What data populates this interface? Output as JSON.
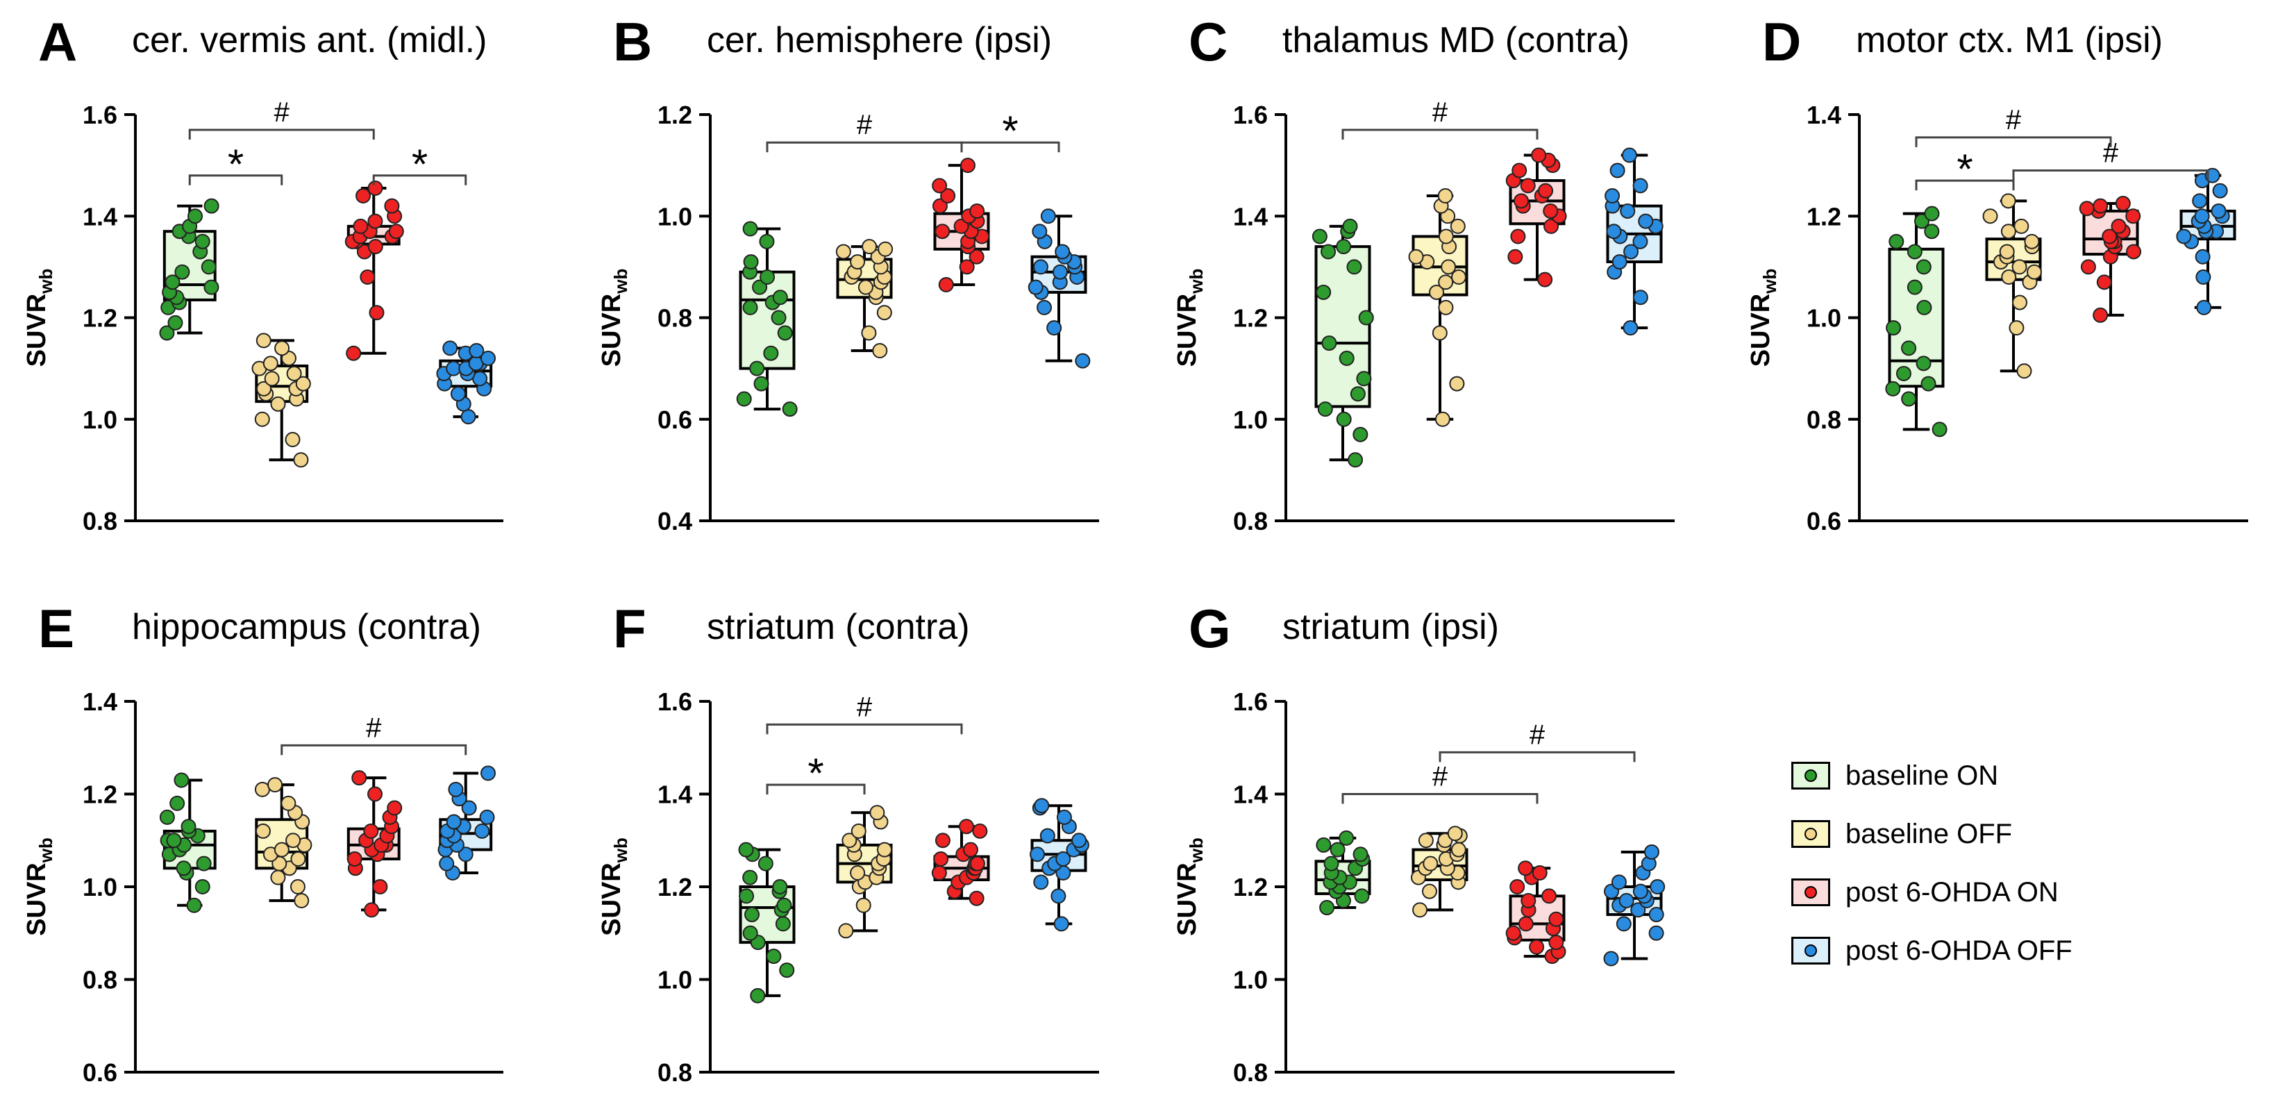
{
  "chart_data": [
    {
      "type": "box",
      "panel_letter": "A",
      "title": "cer. vermis ant. (midl.)",
      "ylabel": "SUVR",
      "ylabel_sub": "wb",
      "ylim": [
        0.8,
        1.6
      ],
      "yticks": [
        "0.8",
        "1.0",
        "1.2",
        "1.4",
        "1.6"
      ],
      "groups": [
        {
          "name": "baseline ON",
          "min": 1.17,
          "q1": 1.235,
          "median": 1.265,
          "q3": 1.37,
          "max": 1.42,
          "points": [
            1.17,
            1.19,
            1.22,
            1.23,
            1.24,
            1.25,
            1.26,
            1.27,
            1.29,
            1.3,
            1.33,
            1.35,
            1.36,
            1.37,
            1.38,
            1.4,
            1.42
          ]
        },
        {
          "name": "baseline OFF",
          "min": 0.92,
          "q1": 1.035,
          "median": 1.065,
          "q3": 1.105,
          "max": 1.155,
          "points": [
            0.92,
            0.96,
            1.0,
            1.03,
            1.04,
            1.05,
            1.06,
            1.06,
            1.07,
            1.08,
            1.09,
            1.1,
            1.11,
            1.12,
            1.14,
            1.155
          ]
        },
        {
          "name": "post 6-OHDA ON",
          "min": 1.13,
          "q1": 1.345,
          "median": 1.36,
          "q3": 1.38,
          "max": 1.455,
          "points": [
            1.13,
            1.21,
            1.28,
            1.33,
            1.34,
            1.35,
            1.35,
            1.36,
            1.36,
            1.37,
            1.37,
            1.38,
            1.39,
            1.4,
            1.42,
            1.44,
            1.455
          ]
        },
        {
          "name": "post 6-OHDA OFF",
          "min": 1.005,
          "q1": 1.065,
          "median": 1.095,
          "q3": 1.115,
          "max": 1.14,
          "points": [
            1.005,
            1.03,
            1.05,
            1.06,
            1.07,
            1.08,
            1.09,
            1.09,
            1.1,
            1.1,
            1.11,
            1.11,
            1.12,
            1.13,
            1.135,
            1.14
          ]
        }
      ],
      "annotations": [
        {
          "symbol": "#",
          "from": 1,
          "to": 3,
          "y": 1.57
        },
        {
          "symbol": "*",
          "from": 1,
          "to": 2,
          "y": 1.48
        },
        {
          "symbol": "*",
          "from": 3,
          "to": 4,
          "y": 1.48
        }
      ]
    },
    {
      "type": "box",
      "panel_letter": "B",
      "title": "cer. hemisphere (ipsi)",
      "ylabel": "SUVR",
      "ylabel_sub": "wb",
      "ylim": [
        0.4,
        1.2
      ],
      "yticks": [
        "0.4",
        "0.6",
        "0.8",
        "1.0",
        "1.2"
      ],
      "groups": [
        {
          "name": "baseline ON",
          "min": 0.62,
          "q1": 0.7,
          "median": 0.835,
          "q3": 0.89,
          "max": 0.975,
          "points": [
            0.62,
            0.64,
            0.67,
            0.7,
            0.73,
            0.77,
            0.8,
            0.82,
            0.83,
            0.84,
            0.86,
            0.88,
            0.89,
            0.91,
            0.95,
            0.975
          ]
        },
        {
          "name": "baseline OFF",
          "min": 0.735,
          "q1": 0.84,
          "median": 0.875,
          "q3": 0.915,
          "max": 0.94,
          "points": [
            0.735,
            0.77,
            0.81,
            0.84,
            0.85,
            0.86,
            0.87,
            0.88,
            0.88,
            0.89,
            0.9,
            0.91,
            0.92,
            0.93,
            0.935,
            0.94
          ]
        },
        {
          "name": "post 6-OHDA ON",
          "min": 0.865,
          "q1": 0.935,
          "median": 0.97,
          "q3": 1.005,
          "max": 1.1,
          "points": [
            0.865,
            0.9,
            0.92,
            0.94,
            0.95,
            0.96,
            0.97,
            0.97,
            0.98,
            0.99,
            1.0,
            1.01,
            1.02,
            1.04,
            1.06,
            1.1
          ]
        },
        {
          "name": "post 6-OHDA OFF",
          "min": 0.715,
          "q1": 0.85,
          "median": 0.89,
          "q3": 0.92,
          "max": 1.0,
          "points": [
            0.715,
            0.78,
            0.82,
            0.85,
            0.86,
            0.87,
            0.88,
            0.89,
            0.9,
            0.9,
            0.91,
            0.92,
            0.93,
            0.95,
            0.97,
            1.0
          ]
        }
      ],
      "annotations": [
        {
          "symbol": "#",
          "from": 1,
          "to": 3,
          "y": 1.145
        },
        {
          "symbol": "*",
          "from": 3,
          "to": 4,
          "y": 1.145
        }
      ]
    },
    {
      "type": "box",
      "panel_letter": "C",
      "title": "thalamus MD (contra)",
      "ylabel": "SUVR",
      "ylabel_sub": "wb",
      "ylim": [
        0.8,
        1.6
      ],
      "yticks": [
        "0.8",
        "1.0",
        "1.2",
        "1.4",
        "1.6"
      ],
      "groups": [
        {
          "name": "baseline ON",
          "min": 0.92,
          "q1": 1.025,
          "median": 1.15,
          "q3": 1.34,
          "max": 1.38,
          "points": [
            0.92,
            0.97,
            1.0,
            1.02,
            1.05,
            1.08,
            1.12,
            1.15,
            1.2,
            1.25,
            1.3,
            1.33,
            1.34,
            1.36,
            1.37,
            1.38
          ]
        },
        {
          "name": "baseline OFF",
          "min": 1.0,
          "q1": 1.245,
          "median": 1.3,
          "q3": 1.36,
          "max": 1.44,
          "points": [
            1.0,
            1.07,
            1.17,
            1.22,
            1.25,
            1.27,
            1.28,
            1.3,
            1.31,
            1.32,
            1.34,
            1.36,
            1.38,
            1.4,
            1.42,
            1.44
          ]
        },
        {
          "name": "post 6-OHDA ON",
          "min": 1.275,
          "q1": 1.385,
          "median": 1.43,
          "q3": 1.47,
          "max": 1.52,
          "points": [
            1.275,
            1.32,
            1.36,
            1.38,
            1.4,
            1.41,
            1.42,
            1.43,
            1.44,
            1.45,
            1.46,
            1.47,
            1.49,
            1.5,
            1.51,
            1.52
          ]
        },
        {
          "name": "post 6-OHDA OFF",
          "min": 1.18,
          "q1": 1.31,
          "median": 1.365,
          "q3": 1.42,
          "max": 1.52,
          "points": [
            1.18,
            1.24,
            1.29,
            1.31,
            1.33,
            1.35,
            1.36,
            1.37,
            1.38,
            1.39,
            1.41,
            1.42,
            1.44,
            1.46,
            1.49,
            1.52
          ]
        }
      ],
      "annotations": [
        {
          "symbol": "#",
          "from": 1,
          "to": 3,
          "y": 1.57
        }
      ]
    },
    {
      "type": "box",
      "panel_letter": "D",
      "title": "motor ctx. M1 (ipsi)",
      "ylabel": "SUVR",
      "ylabel_sub": "wb",
      "ylim": [
        0.6,
        1.4
      ],
      "yticks": [
        "0.6",
        "0.8",
        "1.0",
        "1.2",
        "1.4"
      ],
      "groups": [
        {
          "name": "baseline ON",
          "min": 0.78,
          "q1": 0.865,
          "median": 0.915,
          "q3": 1.135,
          "max": 1.205,
          "points": [
            0.78,
            0.84,
            0.86,
            0.87,
            0.89,
            0.91,
            0.94,
            0.98,
            1.02,
            1.06,
            1.1,
            1.13,
            1.15,
            1.17,
            1.19,
            1.205
          ]
        },
        {
          "name": "baseline OFF",
          "min": 0.895,
          "q1": 1.075,
          "median": 1.11,
          "q3": 1.155,
          "max": 1.23,
          "points": [
            0.895,
            0.98,
            1.03,
            1.07,
            1.08,
            1.09,
            1.1,
            1.11,
            1.12,
            1.13,
            1.14,
            1.15,
            1.17,
            1.18,
            1.2,
            1.23
          ]
        },
        {
          "name": "post 6-OHDA ON",
          "min": 1.005,
          "q1": 1.125,
          "median": 1.155,
          "q3": 1.21,
          "max": 1.225,
          "points": [
            1.005,
            1.07,
            1.1,
            1.12,
            1.13,
            1.14,
            1.15,
            1.15,
            1.16,
            1.17,
            1.18,
            1.2,
            1.21,
            1.215,
            1.22,
            1.225
          ]
        },
        {
          "name": "post 6-OHDA OFF",
          "min": 1.02,
          "q1": 1.155,
          "median": 1.18,
          "q3": 1.21,
          "max": 1.28,
          "points": [
            1.02,
            1.08,
            1.12,
            1.15,
            1.16,
            1.17,
            1.17,
            1.18,
            1.19,
            1.2,
            1.2,
            1.21,
            1.23,
            1.25,
            1.27,
            1.28
          ]
        }
      ],
      "annotations": [
        {
          "symbol": "#",
          "from": 1,
          "to": 3,
          "y": 1.355
        },
        {
          "symbol": "#",
          "from": 2,
          "to": 4,
          "y": 1.29
        },
        {
          "symbol": "*",
          "from": 1,
          "to": 2,
          "y": 1.27
        }
      ]
    },
    {
      "type": "box",
      "panel_letter": "E",
      "title": "hippocampus (contra)",
      "ylabel": "SUVR",
      "ylabel_sub": "wb",
      "ylim": [
        0.6,
        1.4
      ],
      "yticks": [
        "0.6",
        "0.8",
        "1.0",
        "1.2",
        "1.4"
      ],
      "groups": [
        {
          "name": "baseline ON",
          "min": 0.96,
          "q1": 1.04,
          "median": 1.09,
          "q3": 1.12,
          "max": 1.23,
          "points": [
            0.96,
            1.0,
            1.03,
            1.04,
            1.05,
            1.07,
            1.08,
            1.09,
            1.1,
            1.1,
            1.11,
            1.12,
            1.13,
            1.15,
            1.18,
            1.23
          ]
        },
        {
          "name": "baseline OFF",
          "min": 0.97,
          "q1": 1.04,
          "median": 1.075,
          "q3": 1.145,
          "max": 1.22,
          "points": [
            0.97,
            1.0,
            1.02,
            1.04,
            1.05,
            1.06,
            1.07,
            1.08,
            1.09,
            1.1,
            1.12,
            1.14,
            1.16,
            1.18,
            1.21,
            1.22
          ]
        },
        {
          "name": "post 6-OHDA ON",
          "min": 0.95,
          "q1": 1.06,
          "median": 1.09,
          "q3": 1.125,
          "max": 1.235,
          "points": [
            0.95,
            1.0,
            1.04,
            1.06,
            1.07,
            1.08,
            1.09,
            1.09,
            1.1,
            1.11,
            1.12,
            1.13,
            1.15,
            1.17,
            1.2,
            1.235
          ]
        },
        {
          "name": "post 6-OHDA OFF",
          "min": 1.03,
          "q1": 1.08,
          "median": 1.115,
          "q3": 1.145,
          "max": 1.245,
          "points": [
            1.03,
            1.05,
            1.07,
            1.08,
            1.09,
            1.1,
            1.11,
            1.12,
            1.12,
            1.13,
            1.14,
            1.15,
            1.17,
            1.19,
            1.21,
            1.245
          ]
        }
      ],
      "annotations": [
        {
          "symbol": "#",
          "from": 2,
          "to": 4,
          "y": 1.305
        }
      ]
    },
    {
      "type": "box",
      "panel_letter": "F",
      "title": "striatum (contra)",
      "ylabel": "SUVR",
      "ylabel_sub": "wb",
      "ylim": [
        0.8,
        1.6
      ],
      "yticks": [
        "0.8",
        "1.0",
        "1.2",
        "1.4",
        "1.6"
      ],
      "groups": [
        {
          "name": "baseline ON",
          "min": 0.965,
          "q1": 1.08,
          "median": 1.155,
          "q3": 1.2,
          "max": 1.28,
          "points": [
            0.965,
            1.02,
            1.05,
            1.08,
            1.1,
            1.12,
            1.14,
            1.15,
            1.16,
            1.18,
            1.19,
            1.2,
            1.22,
            1.25,
            1.27,
            1.28
          ]
        },
        {
          "name": "baseline OFF",
          "min": 1.105,
          "q1": 1.21,
          "median": 1.25,
          "q3": 1.29,
          "max": 1.36,
          "points": [
            1.105,
            1.16,
            1.2,
            1.21,
            1.22,
            1.23,
            1.24,
            1.25,
            1.26,
            1.27,
            1.28,
            1.29,
            1.3,
            1.32,
            1.34,
            1.36
          ]
        },
        {
          "name": "post 6-OHDA ON",
          "min": 1.175,
          "q1": 1.215,
          "median": 1.24,
          "q3": 1.265,
          "max": 1.33,
          "points": [
            1.175,
            1.19,
            1.21,
            1.22,
            1.23,
            1.23,
            1.24,
            1.24,
            1.25,
            1.25,
            1.26,
            1.27,
            1.28,
            1.3,
            1.32,
            1.33
          ]
        },
        {
          "name": "post 6-OHDA OFF",
          "min": 1.12,
          "q1": 1.235,
          "median": 1.27,
          "q3": 1.3,
          "max": 1.375,
          "points": [
            1.12,
            1.18,
            1.21,
            1.23,
            1.24,
            1.25,
            1.26,
            1.27,
            1.28,
            1.29,
            1.3,
            1.31,
            1.33,
            1.35,
            1.37,
            1.375
          ]
        }
      ],
      "annotations": [
        {
          "symbol": "#",
          "from": 1,
          "to": 3,
          "y": 1.55
        },
        {
          "symbol": "*",
          "from": 1,
          "to": 2,
          "y": 1.42
        }
      ]
    },
    {
      "type": "box",
      "panel_letter": "G",
      "title": "striatum (ipsi)",
      "ylabel": "SUVR",
      "ylabel_sub": "wb",
      "ylim": [
        0.8,
        1.6
      ],
      "yticks": [
        "0.8",
        "1.0",
        "1.2",
        "1.4",
        "1.6"
      ],
      "groups": [
        {
          "name": "baseline ON",
          "min": 1.155,
          "q1": 1.185,
          "median": 1.215,
          "q3": 1.255,
          "max": 1.305,
          "points": [
            1.155,
            1.17,
            1.18,
            1.19,
            1.2,
            1.21,
            1.21,
            1.22,
            1.23,
            1.24,
            1.25,
            1.26,
            1.27,
            1.28,
            1.29,
            1.305
          ]
        },
        {
          "name": "baseline OFF",
          "min": 1.15,
          "q1": 1.215,
          "median": 1.245,
          "q3": 1.28,
          "max": 1.315,
          "points": [
            1.15,
            1.19,
            1.21,
            1.22,
            1.23,
            1.24,
            1.24,
            1.25,
            1.26,
            1.27,
            1.28,
            1.29,
            1.3,
            1.3,
            1.31,
            1.315
          ]
        },
        {
          "name": "post 6-OHDA ON",
          "min": 1.05,
          "q1": 1.085,
          "median": 1.12,
          "q3": 1.18,
          "max": 1.24,
          "points": [
            1.05,
            1.06,
            1.07,
            1.08,
            1.09,
            1.1,
            1.11,
            1.12,
            1.13,
            1.15,
            1.17,
            1.18,
            1.2,
            1.22,
            1.23,
            1.24
          ]
        },
        {
          "name": "post 6-OHDA OFF",
          "min": 1.045,
          "q1": 1.14,
          "median": 1.175,
          "q3": 1.2,
          "max": 1.275,
          "points": [
            1.045,
            1.1,
            1.12,
            1.14,
            1.15,
            1.16,
            1.17,
            1.17,
            1.18,
            1.19,
            1.19,
            1.2,
            1.21,
            1.23,
            1.25,
            1.275
          ]
        }
      ],
      "annotations": [
        {
          "symbol": "#",
          "from": 1,
          "to": 3,
          "y": 1.4
        },
        {
          "symbol": "#",
          "from": 2,
          "to": 4,
          "y": 1.49
        }
      ]
    }
  ],
  "legend": [
    {
      "label": "baseline ON",
      "fill": "#e3f8dc",
      "dot": "#2e9b2e"
    },
    {
      "label": "baseline OFF",
      "fill": "#fbf6c3",
      "dot": "#f3d68e"
    },
    {
      "label": "post 6-OHDA ON",
      "fill": "#fbdcdc",
      "dot": "#ee2222"
    },
    {
      "label": "post 6-OHDA OFF",
      "fill": "#dcf0fb",
      "dot": "#2a8ce0"
    }
  ]
}
